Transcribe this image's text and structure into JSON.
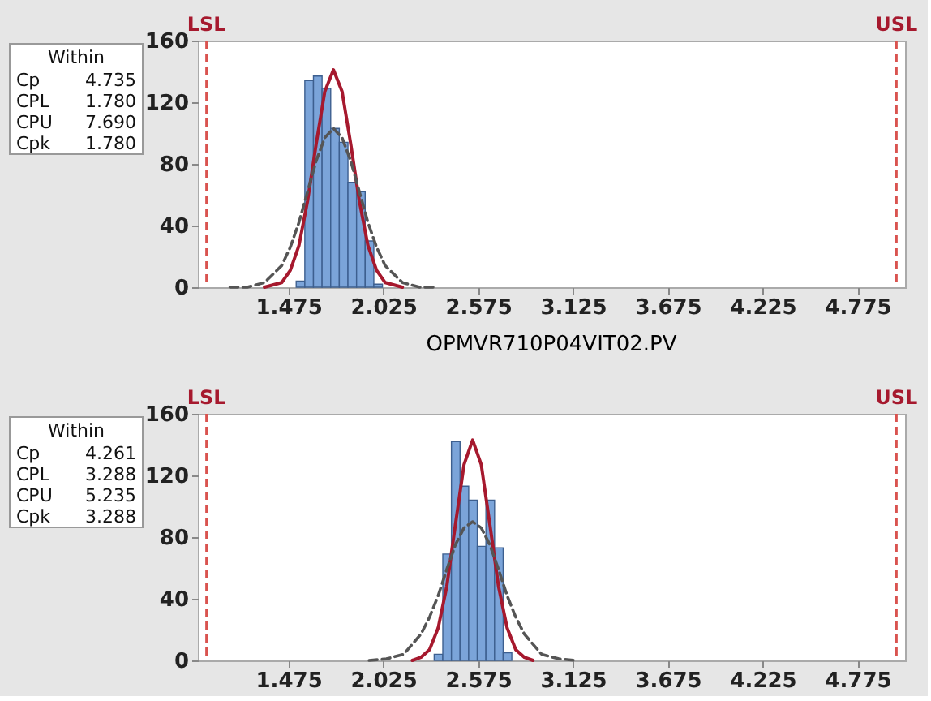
{
  "chart_data": [
    {
      "type": "histogram",
      "xlim": [
        0.95,
        5.05
      ],
      "ylim": [
        0,
        160
      ],
      "xticks": [
        1.475,
        2.025,
        2.575,
        3.125,
        3.675,
        4.225,
        4.775
      ],
      "yticks": [
        0,
        40,
        80,
        120,
        160
      ],
      "grid": false,
      "series": [
        {
          "color": "#7ba4d9",
          "bins": [
            1.52,
            1.57,
            1.62,
            1.67,
            1.72,
            1.77,
            1.82,
            1.87,
            1.92,
            1.97,
            2.02
          ],
          "values": [
            4,
            134,
            137,
            129,
            103,
            94,
            68,
            62,
            30,
            2
          ]
        },
        {
          "type": "line",
          "color": "#a6192e",
          "line_style": "solid",
          "x": [
            1.336,
            1.436,
            1.486,
            1.536,
            1.586,
            1.636,
            1.686,
            1.736,
            1.786,
            1.836,
            1.886,
            1.936,
            1.986,
            2.036,
            2.136
          ],
          "values": [
            0,
            3,
            11,
            27,
            56,
            93,
            127,
            141,
            127,
            93,
            56,
            27,
            11,
            3,
            0
          ]
        },
        {
          "type": "line",
          "color": "#555555",
          "line_style": "dashed",
          "x": [
            1.136,
            1.236,
            1.336,
            1.436,
            1.486,
            1.536,
            1.586,
            1.636,
            1.686,
            1.736,
            1.786,
            1.836,
            1.886,
            1.936,
            1.986,
            2.036,
            2.136,
            2.236,
            2.336
          ],
          "values": [
            0,
            0,
            3,
            14,
            26,
            42,
            62,
            82,
            97,
            103,
            97,
            82,
            62,
            42,
            26,
            14,
            3,
            0,
            0
          ]
        }
      ],
      "ref_lines": [
        {
          "axis": "x",
          "value": 1,
          "label": "LSL",
          "color": "#d9534f",
          "line_style": "dashed"
        },
        {
          "axis": "x",
          "value": 5,
          "label": "USL",
          "color": "#d9534f",
          "line_style": "dashed"
        }
      ],
      "annotations": [
        "Within",
        "Cp",
        "4.735",
        "CPL",
        "1.780",
        "CPU",
        "7.690",
        "Cpk",
        "1.780"
      ]
    },
    {
      "type": "histogram",
      "title": "OPMVR710P04VIT02.PV",
      "xlim": [
        0.95,
        5.05
      ],
      "ylim": [
        0,
        160
      ],
      "xticks": [
        1.475,
        2.025,
        2.575,
        3.125,
        3.675,
        4.225,
        4.775
      ],
      "yticks": [
        0,
        40,
        80,
        120,
        160
      ],
      "grid": false,
      "series": [
        {
          "color": "#7ba4d9",
          "bins": [
            2.32,
            2.37,
            2.42,
            2.47,
            2.52,
            2.57,
            2.62,
            2.67,
            2.72,
            2.77
          ],
          "values": [
            4,
            69,
            142,
            113,
            104,
            74,
            104,
            73,
            5
          ]
        },
        {
          "type": "line",
          "color": "#a6192e",
          "line_style": "solid",
          "x": [
            2.193,
            2.243,
            2.293,
            2.343,
            2.393,
            2.443,
            2.493,
            2.543,
            2.593,
            2.643,
            2.693,
            2.743,
            2.793,
            2.843,
            2.893
          ],
          "values": [
            0,
            2,
            7,
            21,
            48,
            88,
            127,
            143,
            127,
            88,
            48,
            21,
            7,
            2,
            0
          ]
        },
        {
          "type": "line",
          "color": "#555555",
          "line_style": "dashed",
          "x": [
            1.943,
            2.043,
            2.143,
            2.243,
            2.293,
            2.343,
            2.393,
            2.443,
            2.493,
            2.543,
            2.593,
            2.643,
            2.693,
            2.743,
            2.793,
            2.843,
            2.943,
            3.043,
            3.143
          ],
          "values": [
            0,
            1,
            4,
            17,
            28,
            42,
            59,
            75,
            86,
            90,
            86,
            75,
            59,
            42,
            28,
            17,
            4,
            1,
            0
          ]
        }
      ],
      "ref_lines": [
        {
          "axis": "x",
          "value": 1,
          "label": "LSL",
          "color": "#d9534f",
          "line_style": "dashed"
        },
        {
          "axis": "x",
          "value": 5,
          "label": "USL",
          "color": "#d9534f",
          "line_style": "dashed"
        }
      ],
      "annotations": [
        "Within",
        "Cp",
        "4.261",
        "CPL",
        "3.288",
        "CPU",
        "5.235",
        "Cpk",
        "3.288"
      ]
    }
  ]
}
